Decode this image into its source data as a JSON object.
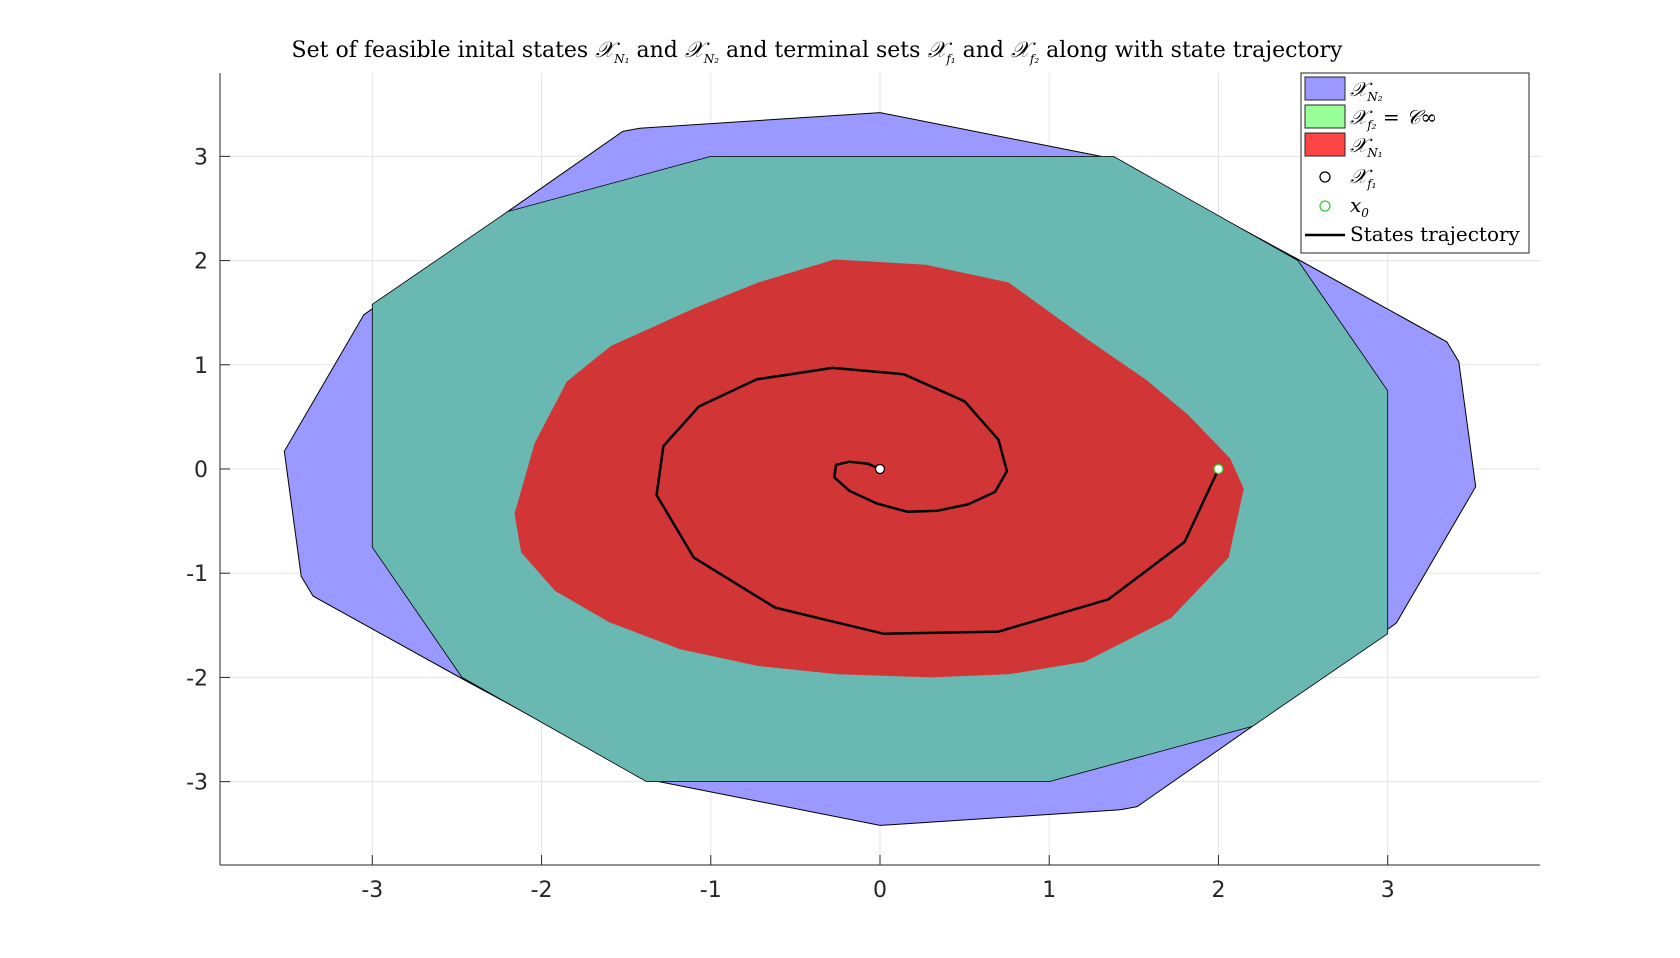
{
  "chart_data": {
    "type": "area",
    "title": {
      "text_1": "Set of feasible inital states ",
      "sym_xn1": "𝒳",
      "sub_n1": "N₁",
      "text_2": " and ",
      "sym_xn2": "𝒳",
      "sub_n2": "N₂",
      "text_3": " and terminal sets ",
      "sym_xf1": "𝒳",
      "sub_f1": "f₁",
      "text_4": " and ",
      "sym_xf2": "𝒳",
      "sub_f2": "f₂",
      "text_5": " along with state trajectory"
    },
    "xlim": [
      -3.9,
      3.9
    ],
    "ylim": [
      -3.8,
      3.8
    ],
    "xticks": [
      -3,
      -2,
      -1,
      0,
      1,
      2,
      3
    ],
    "yticks": [
      -3,
      -2,
      -1,
      0,
      1,
      2,
      3
    ],
    "xtick_labels": [
      "-3",
      "-2",
      "-1",
      "0",
      "1",
      "2",
      "3"
    ],
    "ytick_labels": [
      "-3",
      "-2",
      "-1",
      "0",
      "1",
      "2",
      "3"
    ],
    "grid": true,
    "legend_position": "top-right",
    "legend": {
      "xn2_sym": "𝒳",
      "xn2_sub": "N₂",
      "xf2_sym": "𝒳",
      "xf2_sub": "f₂",
      "xf2_rest": " = 𝒞∞",
      "xn1_sym": "𝒳",
      "xn1_sub": "N₁",
      "xf1_sym": "𝒳",
      "xf1_sub": "f₁",
      "x0_sym": "x",
      "x0_sub": "0",
      "traj": "States trajectory"
    },
    "colors": {
      "xn2": "#9999ff",
      "xf2": "#99ff99",
      "xf2_over_blue": "#6ab8b2",
      "xn1": "#d13535",
      "xn1_legend": "#ff4545",
      "trajectory": "#000000",
      "x0_marker": "#33cc33",
      "xf1_marker": "#000000"
    },
    "series": [
      {
        "name": "XN2",
        "kind": "polygon",
        "points": [
          [
            0.0,
            3.42
          ],
          [
            1.37,
            2.98
          ],
          [
            2.45,
            2.03
          ],
          [
            3.35,
            1.22
          ],
          [
            3.42,
            1.03
          ],
          [
            3.52,
            -0.17
          ],
          [
            3.05,
            -1.48
          ],
          [
            2.2,
            -2.47
          ],
          [
            1.52,
            -3.24
          ],
          [
            1.42,
            -3.27
          ],
          [
            0.0,
            -3.42
          ],
          [
            -1.37,
            -2.98
          ],
          [
            -2.45,
            -2.03
          ],
          [
            -3.35,
            -1.22
          ],
          [
            -3.42,
            -1.03
          ],
          [
            -3.52,
            0.17
          ],
          [
            -3.05,
            1.48
          ],
          [
            -2.2,
            2.47
          ],
          [
            -1.52,
            3.24
          ],
          [
            -1.42,
            3.27
          ]
        ]
      },
      {
        "name": "Xf2 = C∞",
        "kind": "polygon",
        "points": [
          [
            -1.0,
            3.0
          ],
          [
            1.38,
            3.0
          ],
          [
            2.47,
            2.0
          ],
          [
            3.0,
            0.75
          ],
          [
            3.0,
            -1.58
          ],
          [
            2.2,
            -2.47
          ],
          [
            1.0,
            -3.0
          ],
          [
            -1.38,
            -3.0
          ],
          [
            -2.47,
            -2.0
          ],
          [
            -3.0,
            -0.75
          ],
          [
            -3.0,
            1.58
          ],
          [
            -2.2,
            2.47
          ]
        ]
      },
      {
        "name": "XN1",
        "kind": "polygon",
        "points": [
          [
            -0.27,
            2.01
          ],
          [
            0.27,
            1.96
          ],
          [
            0.76,
            1.79
          ],
          [
            1.22,
            1.25
          ],
          [
            1.57,
            0.86
          ],
          [
            1.82,
            0.52
          ],
          [
            2.07,
            0.1
          ],
          [
            2.15,
            -0.19
          ],
          [
            2.06,
            -0.85
          ],
          [
            1.72,
            -1.43
          ],
          [
            1.21,
            -1.85
          ],
          [
            0.76,
            -1.97
          ],
          [
            0.3,
            -2.0
          ],
          [
            -0.25,
            -1.97
          ],
          [
            -0.72,
            -1.89
          ],
          [
            -1.18,
            -1.73
          ],
          [
            -1.6,
            -1.47
          ],
          [
            -1.92,
            -1.17
          ],
          [
            -2.12,
            -0.8
          ],
          [
            -2.16,
            -0.43
          ],
          [
            -2.04,
            0.25
          ],
          [
            -1.85,
            0.84
          ],
          [
            -1.59,
            1.18
          ],
          [
            -1.1,
            1.54
          ],
          [
            -0.72,
            1.79
          ]
        ]
      },
      {
        "name": "States trajectory",
        "kind": "line",
        "x": [
          2.0,
          1.8,
          1.35,
          0.7,
          0.02,
          -0.62,
          -1.1,
          -1.32,
          -1.28,
          -1.07,
          -0.73,
          -0.28,
          0.14,
          0.5,
          0.7,
          0.75,
          0.68,
          0.52,
          0.34,
          0.16,
          -0.02,
          -0.18,
          -0.27,
          -0.26,
          -0.18,
          -0.07,
          0.0
        ],
        "y": [
          0.0,
          -0.7,
          -1.25,
          -1.56,
          -1.58,
          -1.33,
          -0.85,
          -0.25,
          0.22,
          0.6,
          0.86,
          0.97,
          0.91,
          0.65,
          0.28,
          -0.02,
          -0.22,
          -0.34,
          -0.4,
          -0.41,
          -0.33,
          -0.21,
          -0.08,
          0.04,
          0.07,
          0.05,
          0.0
        ]
      },
      {
        "name": "x0",
        "kind": "marker",
        "x": [
          2.0
        ],
        "y": [
          0.0
        ]
      },
      {
        "name": "Xf1",
        "kind": "marker",
        "x": [
          0.0
        ],
        "y": [
          0.0
        ]
      }
    ]
  }
}
